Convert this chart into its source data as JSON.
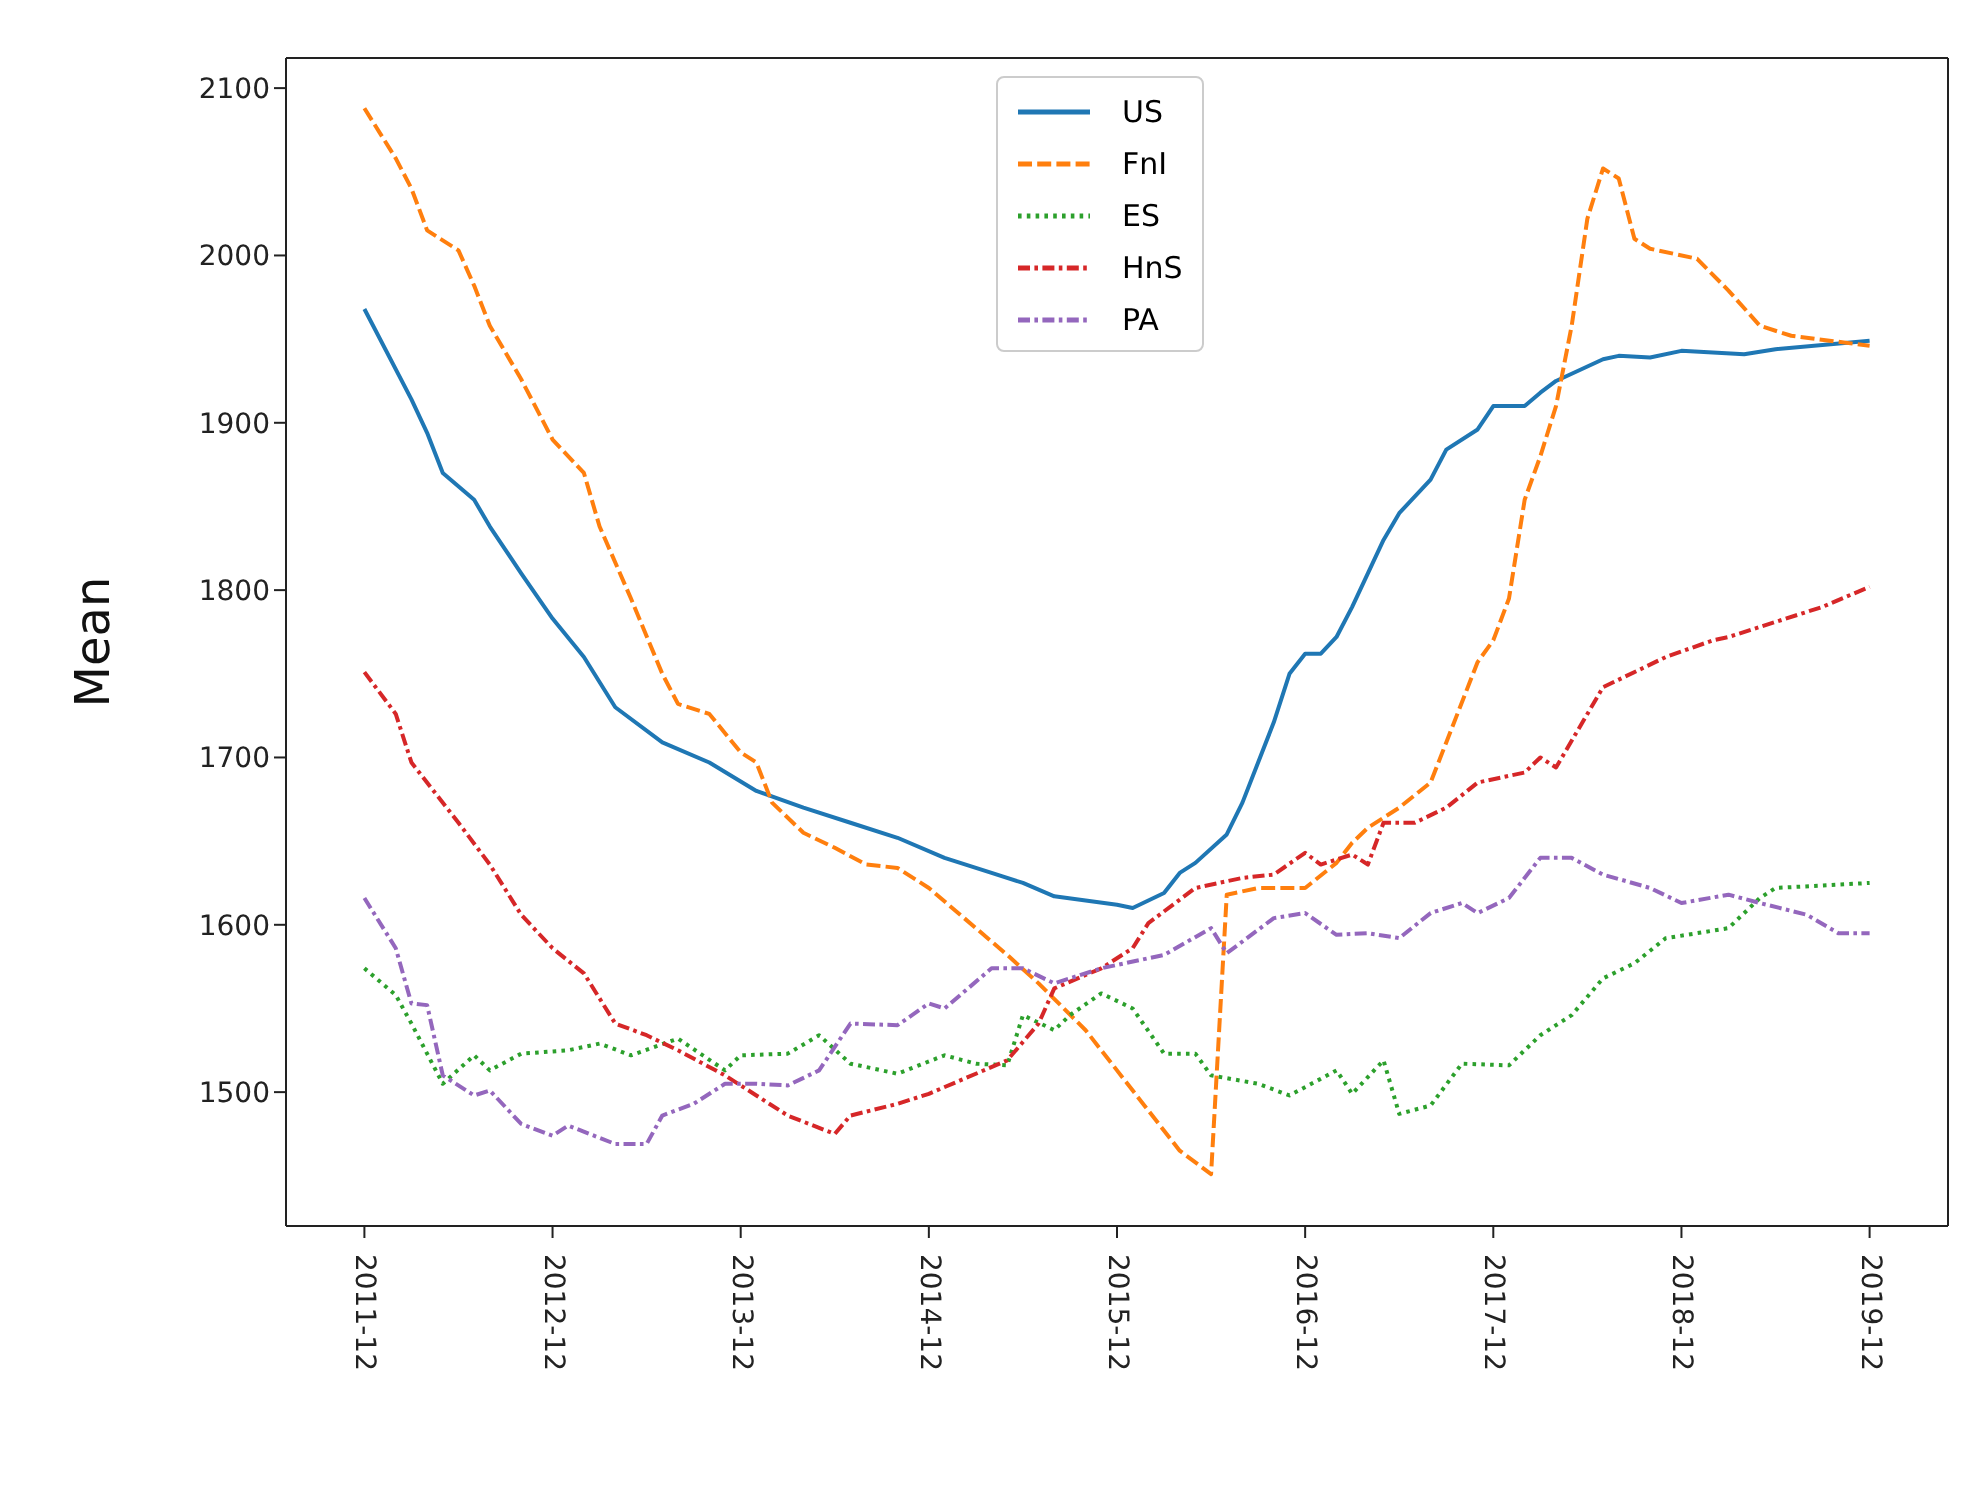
{
  "chart_data": {
    "type": "line",
    "ylabel": "Mean",
    "legend": "top",
    "xlim": [
      "2011-07",
      "2020-05"
    ],
    "xticks": [
      "2011-12",
      "2012-12",
      "2013-12",
      "2014-12",
      "2015-12",
      "2016-12",
      "2017-12",
      "2018-12",
      "2019-12"
    ],
    "ylim": [
      1420,
      2118
    ],
    "yticks": [
      1500,
      1600,
      1700,
      1800,
      1900,
      2000,
      2100
    ],
    "series": [
      {
        "name": "US",
        "color": "#1f77b4",
        "line_style": "solid",
        "x": [
          "2011-12",
          "2012-03",
          "2012-04",
          "2012-05",
          "2012-07",
          "2012-08",
          "2012-10",
          "2012-12",
          "2013-02",
          "2013-04",
          "2013-07",
          "2013-10",
          "2014-01",
          "2014-04",
          "2014-07",
          "2014-10",
          "2015-01",
          "2015-04",
          "2015-06",
          "2015-08",
          "2015-12",
          "2016-01",
          "2016-03",
          "2016-04",
          "2016-05",
          "2016-07",
          "2016-08",
          "2016-09",
          "2016-10",
          "2016-11",
          "2016-12",
          "2017-01",
          "2017-02",
          "2017-03",
          "2017-04",
          "2017-05",
          "2017-06",
          "2017-08",
          "2017-09",
          "2017-11",
          "2017-12",
          "2018-02",
          "2018-03",
          "2018-04",
          "2018-07",
          "2018-08",
          "2018-10",
          "2018-12",
          "2019-04",
          "2019-06",
          "2019-12"
        ],
        "values": [
          1968,
          1914,
          1894,
          1870,
          1854,
          1838,
          1810,
          1783,
          1760,
          1730,
          1709,
          1697,
          1680,
          1670,
          1661,
          1652,
          1640,
          1631,
          1625,
          1617,
          1612,
          1610,
          1619,
          1631,
          1637,
          1654,
          1673,
          1697,
          1721,
          1750,
          1762,
          1762,
          1772,
          1790,
          1810,
          1830,
          1846,
          1866,
          1884,
          1896,
          1910,
          1910,
          1918,
          1925,
          1938,
          1940,
          1939,
          1943,
          1941,
          1944,
          1949
        ]
      },
      {
        "name": "FnI",
        "color": "#ff7f0e",
        "line_style": "dashed",
        "x": [
          "2011-12",
          "2012-02",
          "2012-03",
          "2012-04",
          "2012-06",
          "2012-07",
          "2012-08",
          "2012-10",
          "2012-11",
          "2012-12",
          "2013-02",
          "2013-03",
          "2013-05",
          "2013-07",
          "2013-08",
          "2013-10",
          "2013-12",
          "2014-01",
          "2014-02",
          "2014-04",
          "2014-06",
          "2014-08",
          "2014-10",
          "2014-12",
          "2015-03",
          "2015-05",
          "2015-07",
          "2015-10",
          "2015-12",
          "2016-02",
          "2016-04",
          "2016-06",
          "2016-07",
          "2016-09",
          "2016-12",
          "2017-02",
          "2017-03",
          "2017-04",
          "2017-06",
          "2017-08",
          "2017-09",
          "2017-10",
          "2017-11",
          "2017-12",
          "2018-01",
          "2018-02",
          "2018-03",
          "2018-04",
          "2018-05",
          "2018-06",
          "2018-07",
          "2018-08",
          "2018-09",
          "2018-10",
          "2019-01",
          "2019-03",
          "2019-05",
          "2019-07",
          "2019-12"
        ],
        "values": [
          2088,
          2058,
          2040,
          2015,
          2003,
          1982,
          1958,
          1926,
          1908,
          1890,
          1870,
          1838,
          1795,
          1750,
          1732,
          1726,
          1703,
          1697,
          1673,
          1655,
          1646,
          1636,
          1634,
          1622,
          1598,
          1582,
          1565,
          1537,
          1513,
          1489,
          1465,
          1451,
          1618,
          1622,
          1622,
          1637,
          1649,
          1658,
          1670,
          1685,
          1709,
          1733,
          1757,
          1770,
          1795,
          1854,
          1880,
          1910,
          1958,
          2022,
          2052,
          2046,
          2010,
          2004,
          1998,
          1979,
          1958,
          1952,
          1946
        ]
      },
      {
        "name": "ES",
        "color": "#2ca02c",
        "line_style": "dotted",
        "x": [
          "2011-12",
          "2012-02",
          "2012-03",
          "2012-04",
          "2012-05",
          "2012-07",
          "2012-08",
          "2012-10",
          "2013-01",
          "2013-03",
          "2013-05",
          "2013-08",
          "2013-11",
          "2013-12",
          "2014-03",
          "2014-05",
          "2014-07",
          "2014-10",
          "2015-01",
          "2015-03",
          "2015-05",
          "2015-06",
          "2015-08",
          "2015-09",
          "2015-11",
          "2016-01",
          "2016-03",
          "2016-05",
          "2016-06",
          "2016-09",
          "2016-11",
          "2017-02",
          "2017-03",
          "2017-05",
          "2017-06",
          "2017-08",
          "2017-10",
          "2018-01",
          "2018-03",
          "2018-05",
          "2018-07",
          "2018-09",
          "2018-11",
          "2019-03",
          "2019-05",
          "2019-06",
          "2019-12"
        ],
        "values": [
          1574,
          1558,
          1541,
          1523,
          1505,
          1522,
          1513,
          1523,
          1525,
          1529,
          1522,
          1532,
          1513,
          1522,
          1523,
          1534,
          1517,
          1511,
          1522,
          1517,
          1516,
          1546,
          1537,
          1546,
          1559,
          1550,
          1523,
          1523,
          1510,
          1505,
          1498,
          1513,
          1499,
          1519,
          1487,
          1492,
          1517,
          1516,
          1534,
          1546,
          1568,
          1577,
          1592,
          1598,
          1616,
          1622,
          1625
        ]
      },
      {
        "name": "HnS",
        "color": "#d62728",
        "line_style": "dashdot",
        "x": [
          "2011-12",
          "2012-02",
          "2012-03",
          "2012-06",
          "2012-08",
          "2012-10",
          "2012-12",
          "2013-02",
          "2013-04",
          "2013-06",
          "2013-08",
          "2013-11",
          "2014-01",
          "2014-03",
          "2014-06",
          "2014-07",
          "2014-10",
          "2014-12",
          "2015-02",
          "2015-05",
          "2015-07",
          "2015-08",
          "2015-11",
          "2016-01",
          "2016-02",
          "2016-05",
          "2016-08",
          "2016-10",
          "2016-12",
          "2017-01",
          "2017-03",
          "2017-04",
          "2017-05",
          "2017-07",
          "2017-09",
          "2017-11",
          "2018-02",
          "2018-03",
          "2018-04",
          "2018-06",
          "2018-07",
          "2018-11",
          "2019-02",
          "2019-03",
          "2019-06",
          "2019-09",
          "2019-12"
        ],
        "values": [
          1751,
          1726,
          1697,
          1661,
          1636,
          1606,
          1586,
          1571,
          1541,
          1534,
          1525,
          1510,
          1498,
          1486,
          1475,
          1486,
          1493,
          1499,
          1507,
          1519,
          1541,
          1562,
          1574,
          1586,
          1601,
          1622,
          1628,
          1630,
          1643,
          1636,
          1642,
          1636,
          1661,
          1661,
          1670,
          1685,
          1691,
          1700,
          1694,
          1726,
          1742,
          1760,
          1770,
          1772,
          1781,
          1790,
          1802
        ]
      },
      {
        "name": "PA",
        "color": "#9467bd",
        "line_style": "dashdot",
        "x": [
          "2011-12",
          "2012-02",
          "2012-03",
          "2012-04",
          "2012-05",
          "2012-07",
          "2012-08",
          "2012-10",
          "2012-12",
          "2013-01",
          "2013-04",
          "2013-06",
          "2013-07",
          "2013-09",
          "2013-11",
          "2014-01",
          "2014-03",
          "2014-05",
          "2014-07",
          "2014-10",
          "2014-12",
          "2015-01",
          "2015-04",
          "2015-06",
          "2015-08",
          "2015-11",
          "2015-12",
          "2016-03",
          "2016-06",
          "2016-07",
          "2016-10",
          "2016-12",
          "2017-02",
          "2017-04",
          "2017-06",
          "2017-08",
          "2017-10",
          "2017-11",
          "2018-01",
          "2018-03",
          "2018-05",
          "2018-07",
          "2018-10",
          "2018-12",
          "2019-03",
          "2019-05",
          "2019-08",
          "2019-10",
          "2019-12"
        ],
        "values": [
          1616,
          1586,
          1553,
          1552,
          1510,
          1498,
          1501,
          1481,
          1474,
          1480,
          1469,
          1469,
          1486,
          1493,
          1505,
          1505,
          1504,
          1513,
          1541,
          1540,
          1553,
          1550,
          1574,
          1574,
          1565,
          1574,
          1576,
          1582,
          1598,
          1583,
          1604,
          1607,
          1594,
          1595,
          1592,
          1607,
          1613,
          1607,
          1616,
          1640,
          1640,
          1630,
          1622,
          1613,
          1618,
          1613,
          1606,
          1595,
          1595
        ]
      }
    ]
  }
}
